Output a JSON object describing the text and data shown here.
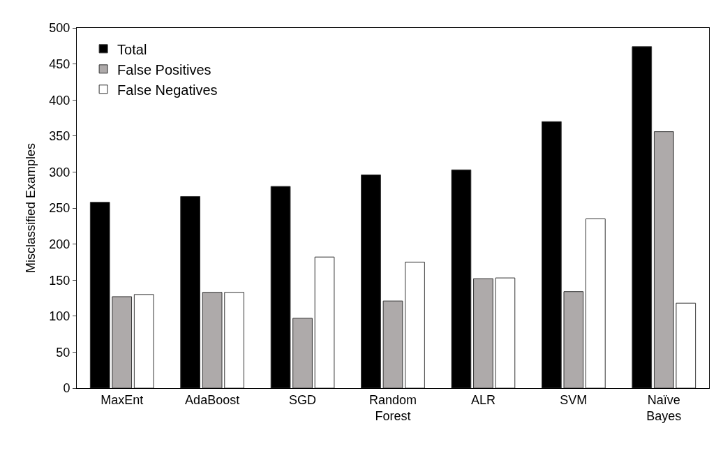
{
  "chart_data": {
    "type": "bar",
    "ylabel": "Misclassified Examples",
    "categories": [
      "MaxEnt",
      "AdaBoost",
      "SGD",
      "Random\nForest",
      "ALR",
      "SVM",
      "Naïve\nBayes"
    ],
    "series": [
      {
        "name": "Total",
        "color": "#000000",
        "values": [
          258,
          266,
          280,
          296,
          303,
          370,
          474
        ]
      },
      {
        "name": "False Positives",
        "color": "#aeaaaa",
        "values": [
          127,
          133,
          97,
          121,
          152,
          134,
          356
        ]
      },
      {
        "name": "False Negatives",
        "color": "#ffffff",
        "values": [
          130,
          133,
          182,
          175,
          153,
          235,
          118
        ]
      }
    ],
    "ylim": [
      0,
      500
    ],
    "yticks": [
      0,
      50,
      100,
      150,
      200,
      250,
      300,
      350,
      400,
      450,
      500
    ],
    "grid": false,
    "legend": "top left"
  }
}
